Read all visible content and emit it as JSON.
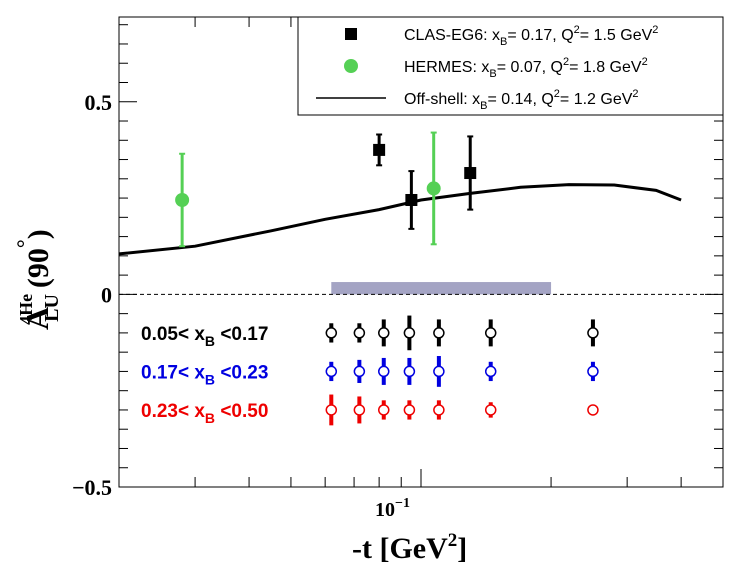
{
  "chart_data": {
    "type": "scatter",
    "xscale": "log",
    "xlim": [
      0.02,
      0.5
    ],
    "ylim": [
      -0.5,
      0.72
    ],
    "grid": false,
    "legend_position": "top-right",
    "xlabel": "-t [GeV²]",
    "xlabel_main": "-t [GeV",
    "xlabel_sup": "2",
    "xlabel_end": "]",
    "ylabel_A": "A",
    "ylabel_sup": "4He",
    "ylabel_sub": "LU",
    "ylabel_arg": "(90",
    "ylabel_deg": "°",
    "ylabel_close": ")",
    "y_ticks": [
      {
        "value": 0.5,
        "label": "0.5"
      },
      {
        "value": 0.0,
        "label": "0"
      },
      {
        "value": -0.5,
        "label": "−0.5"
      }
    ],
    "x_tick_label": {
      "value": 0.1,
      "base": "10",
      "exp": "−1"
    },
    "zero_line": {
      "style": "dashed",
      "color": "#000000"
    },
    "legend": [
      {
        "name": "CLAS-EG6",
        "marker": "square",
        "color": "#000000",
        "text": "CLAS-EG6: x",
        "sub": "B",
        "mid": "= 0.17, Q",
        "sup": "2",
        "end": "= 1.5 GeV",
        "sup2": "2"
      },
      {
        "name": "HERMES",
        "marker": "circle",
        "color": "#55d055",
        "text": "HERMES: x",
        "sub": "B",
        "mid": "= 0.07, Q",
        "sup": "2",
        "end": "= 1.8 GeV",
        "sup2": "2"
      },
      {
        "name": "Off-shell",
        "marker": "line",
        "color": "#000000",
        "text": "Off-shell: x",
        "sub": "B",
        "mid": "= 0.14, Q",
        "sup": "2",
        "end": "= 1.2 GeV",
        "sup2": "2"
      }
    ],
    "series": [
      {
        "name": "CLAS-EG6",
        "marker": "square",
        "color": "#000000",
        "points": [
          {
            "x": 0.08,
            "y": 0.375,
            "err": 0.04
          },
          {
            "x": 0.095,
            "y": 0.245,
            "err": 0.075
          },
          {
            "x": 0.13,
            "y": 0.315,
            "err": 0.095
          }
        ]
      },
      {
        "name": "HERMES",
        "marker": "circle",
        "color": "#55d055",
        "points": [
          {
            "x": 0.028,
            "y": 0.245,
            "err": 0.12
          },
          {
            "x": 0.107,
            "y": 0.275,
            "err": 0.145
          }
        ]
      },
      {
        "name": "Off-shell",
        "marker": "line",
        "color": "#000000",
        "points": [
          {
            "x": 0.02,
            "y": 0.105
          },
          {
            "x": 0.03,
            "y": 0.125
          },
          {
            "x": 0.045,
            "y": 0.165
          },
          {
            "x": 0.06,
            "y": 0.195
          },
          {
            "x": 0.08,
            "y": 0.22
          },
          {
            "x": 0.1,
            "y": 0.245
          },
          {
            "x": 0.13,
            "y": 0.262
          },
          {
            "x": 0.17,
            "y": 0.278
          },
          {
            "x": 0.22,
            "y": 0.285
          },
          {
            "x": 0.28,
            "y": 0.284
          },
          {
            "x": 0.35,
            "y": 0.27
          },
          {
            "x": 0.4,
            "y": 0.245
          }
        ]
      }
    ],
    "systematic_band": {
      "x_from": 0.062,
      "x_to": 0.2,
      "y_from": 0.0,
      "y_to": 0.032,
      "color": "#a4a4c4"
    },
    "bin_rows": [
      {
        "label_pre": "0.05< x",
        "label_sub": "B",
        "label_post": " <0.17",
        "color": "#000000",
        "y": -0.1,
        "points": [
          {
            "x": 0.062,
            "err": 0.025
          },
          {
            "x": 0.072,
            "err": 0.025
          },
          {
            "x": 0.082,
            "err": 0.035
          },
          {
            "x": 0.094,
            "err": 0.045
          },
          {
            "x": 0.11,
            "err": 0.035
          },
          {
            "x": 0.145,
            "err": 0.035
          },
          {
            "x": 0.25,
            "err": 0.035
          }
        ]
      },
      {
        "label_pre": "0.17< x",
        "label_sub": "B",
        "label_post": " <0.23",
        "color": "#0000e0",
        "y": -0.2,
        "points": [
          {
            "x": 0.062,
            "err": 0.025
          },
          {
            "x": 0.072,
            "err": 0.03
          },
          {
            "x": 0.082,
            "err": 0.035
          },
          {
            "x": 0.094,
            "err": 0.035
          },
          {
            "x": 0.11,
            "err": 0.04
          },
          {
            "x": 0.145,
            "err": 0.025
          },
          {
            "x": 0.25,
            "err": 0.025
          }
        ]
      },
      {
        "label_pre": "0.23< x",
        "label_sub": "B",
        "label_post": " <0.50",
        "color": "#ee0000",
        "y": -0.3,
        "points": [
          {
            "x": 0.062,
            "err": 0.04
          },
          {
            "x": 0.072,
            "err": 0.035
          },
          {
            "x": 0.082,
            "err": 0.025
          },
          {
            "x": 0.094,
            "err": 0.025
          },
          {
            "x": 0.11,
            "err": 0.025
          },
          {
            "x": 0.145,
            "err": 0.02
          },
          {
            "x": 0.25,
            "err": 0.0
          }
        ]
      }
    ]
  }
}
